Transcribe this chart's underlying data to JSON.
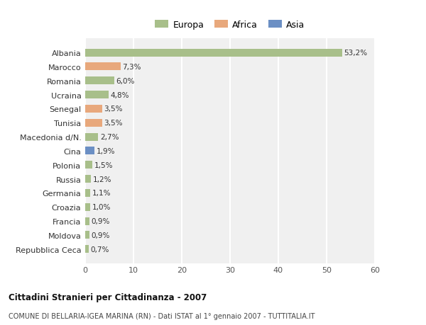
{
  "countries": [
    "Albania",
    "Marocco",
    "Romania",
    "Ucraina",
    "Senegal",
    "Tunisia",
    "Macedonia d/N.",
    "Cina",
    "Polonia",
    "Russia",
    "Germania",
    "Croazia",
    "Francia",
    "Moldova",
    "Repubblica Ceca"
  ],
  "values": [
    53.2,
    7.3,
    6.0,
    4.8,
    3.5,
    3.5,
    2.7,
    1.9,
    1.5,
    1.2,
    1.1,
    1.0,
    0.9,
    0.9,
    0.7
  ],
  "labels": [
    "53,2%",
    "7,3%",
    "6,0%",
    "4,8%",
    "3,5%",
    "3,5%",
    "2,7%",
    "1,9%",
    "1,5%",
    "1,2%",
    "1,1%",
    "1,0%",
    "0,9%",
    "0,9%",
    "0,7%"
  ],
  "continents": [
    "Europa",
    "Africa",
    "Europa",
    "Europa",
    "Africa",
    "Africa",
    "Europa",
    "Asia",
    "Europa",
    "Europa",
    "Europa",
    "Europa",
    "Europa",
    "Europa",
    "Europa"
  ],
  "colors": {
    "Europa": "#a8bf8a",
    "Africa": "#e8a87c",
    "Asia": "#6b8fc4"
  },
  "xlim": [
    0,
    60
  ],
  "xticks": [
    0,
    10,
    20,
    30,
    40,
    50,
    60
  ],
  "title": "Cittadini Stranieri per Cittadinanza - 2007",
  "subtitle": "COMUNE DI BELLARIA-IGEA MARINA (RN) - Dati ISTAT al 1° gennaio 2007 - TUTTITALIA.IT",
  "background_color": "#ffffff",
  "plot_bg_color": "#f0f0f0",
  "grid_color": "#ffffff"
}
